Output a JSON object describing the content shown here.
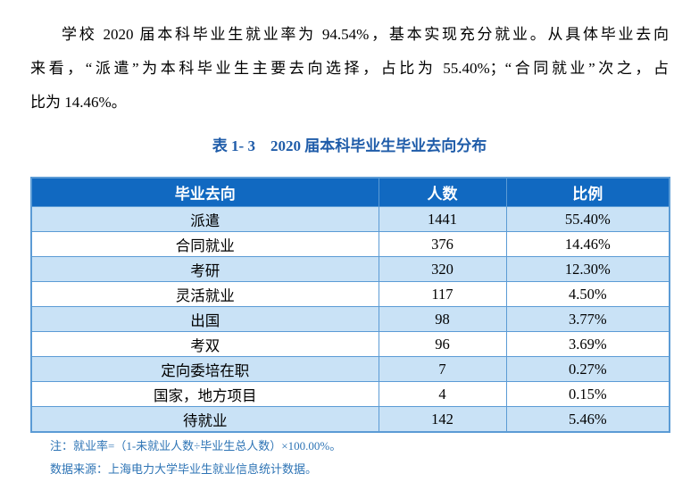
{
  "document": {
    "paragraph": {
      "full_text": "学校 2020 届本科毕业生就业率为 94.54%，基本实现充分就业。从具体毕业去向来看，“派遣”为本科毕业生主要去向选择，占比为 55.40%；“合同就业”次之，占比为 14.46%。",
      "lines": [
        "学校 2020 届本科毕业生就业率为 94.54%，基本实现充分就业。从具体毕业去向",
        "来看，“派遣”为本科毕业生主要去向选择，占比为 55.40%；“合同就业”次之，占",
        "比为 14.46%。"
      ]
    },
    "caption": "表 1- 3　2020 届本科毕业生毕业去向分布",
    "notes": [
      "注：就业率=（1-未就业人数÷毕业生总人数）×100.00%。",
      "数据来源：上海电力大学毕业生就业信息统计数据。"
    ]
  },
  "table": {
    "headers": {
      "destination": "毕业去向",
      "count": "人数",
      "ratio": "比例"
    },
    "rows": [
      {
        "destination": "派遣",
        "count": "1441",
        "ratio": "55.40%"
      },
      {
        "destination": "合同就业",
        "count": "376",
        "ratio": "14.46%"
      },
      {
        "destination": "考研",
        "count": "320",
        "ratio": "12.30%"
      },
      {
        "destination": "灵活就业",
        "count": "117",
        "ratio": "4.50%"
      },
      {
        "destination": "出国",
        "count": "98",
        "ratio": "3.77%"
      },
      {
        "destination": "考双",
        "count": "96",
        "ratio": "3.69%"
      },
      {
        "destination": "定向委培在职",
        "count": "7",
        "ratio": "0.27%"
      },
      {
        "destination": "国家，地方项目",
        "count": "4",
        "ratio": "0.15%"
      },
      {
        "destination": "待就业",
        "count": "142",
        "ratio": "5.46%"
      }
    ]
  },
  "colors": {
    "header_bg": "#1169C1",
    "row_alt_bg": "#C9E2F6",
    "table_border": "#5B9BD5",
    "caption_text": "#1F5CA9",
    "note_text": "#2E74B5",
    "body_text": "#000000"
  }
}
